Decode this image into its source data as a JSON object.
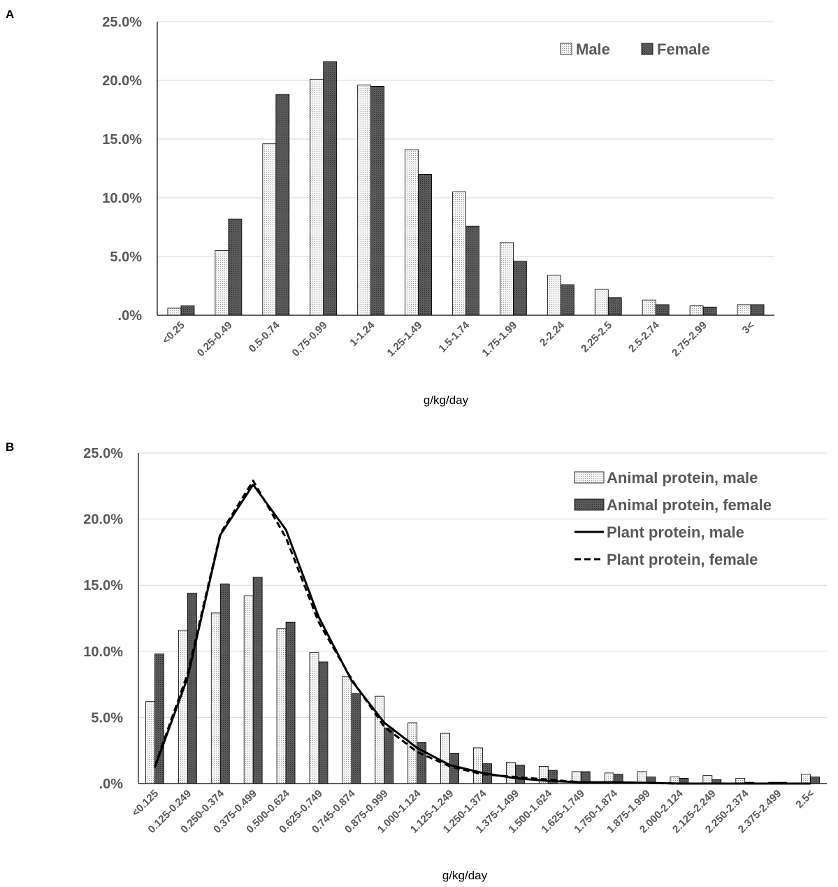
{
  "figure": {
    "colors": {
      "male_fill": "#efefef",
      "female_fill": "#5f5f5f",
      "grid": "#d9d9d9",
      "tick_text": "#595959"
    }
  },
  "chart_data": [
    {
      "panel": "A",
      "type": "bar",
      "xlabel": "g/kg/day",
      "ylabel": "",
      "ylim": [
        0,
        25
      ],
      "yticks": [
        0,
        5,
        10,
        15,
        20,
        25
      ],
      "ytick_labels": [
        ".0%",
        "5.0%",
        "10.0%",
        "15.0%",
        "20.0%",
        "25.0%"
      ],
      "grid": true,
      "legend_position": "top-right",
      "categories": [
        "<0.25",
        "0.25-0.49",
        "0.5-0.74",
        "0.75-0.99",
        "1-1.24",
        "1.25-1.49",
        "1.5-1.74",
        "1.75-1.99",
        "2-2.24",
        "2.25-2.5",
        "2.5-2.74",
        "2.75-2.99",
        "3<"
      ],
      "series": [
        {
          "name": "Male",
          "kind": "bar",
          "fill": "male",
          "values": [
            0.6,
            5.5,
            14.6,
            20.1,
            19.6,
            14.1,
            10.5,
            6.2,
            3.4,
            2.2,
            1.3,
            0.8,
            0.9
          ]
        },
        {
          "name": "Female",
          "kind": "bar",
          "fill": "female",
          "values": [
            0.8,
            8.2,
            18.8,
            21.6,
            19.5,
            12.0,
            7.6,
            4.6,
            2.6,
            1.5,
            0.9,
            0.7,
            0.9
          ]
        }
      ]
    },
    {
      "panel": "B",
      "type": "bar",
      "xlabel": "g/kg/day",
      "ylabel": "",
      "ylim": [
        0,
        25
      ],
      "yticks": [
        0,
        5,
        10,
        15,
        20,
        25
      ],
      "ytick_labels": [
        ".0%",
        "5.0%",
        "10.0%",
        "15.0%",
        "20.0%",
        "25.0%"
      ],
      "grid": true,
      "legend_position": "top-right",
      "categories": [
        "<0.125",
        "0.125-0.249",
        "0.250-0.374",
        "0.375-0.499",
        "0.500-0.624",
        "0.625-0.749",
        "0.745-0.874",
        "0.875-0.999",
        "1.000-1.124",
        "1.125-1.249",
        "1.250-1.374",
        "1.375-1.499",
        "1.500-1.624",
        "1.625-1.749",
        "1.750-1.874",
        "1.875-1.999",
        "2.000-2.124",
        "2.125-2.249",
        "2.250-2.374",
        "2.375-2.499",
        "2.5<"
      ],
      "series": [
        {
          "name": "Animal protein, male",
          "kind": "bar",
          "fill": "male",
          "values": [
            6.2,
            11.6,
            12.9,
            14.2,
            11.7,
            9.9,
            8.1,
            6.6,
            4.6,
            3.8,
            2.7,
            1.6,
            1.3,
            0.9,
            0.8,
            0.9,
            0.5,
            0.6,
            0.4,
            0.1,
            0.7
          ]
        },
        {
          "name": "Animal protein, female",
          "kind": "bar",
          "fill": "female",
          "values": [
            9.8,
            14.4,
            15.1,
            15.6,
            12.2,
            9.2,
            6.8,
            4.2,
            3.1,
            2.3,
            1.5,
            1.4,
            1.0,
            0.9,
            0.7,
            0.5,
            0.4,
            0.3,
            0.1,
            0.1,
            0.5
          ]
        },
        {
          "name": "Plant protein, male",
          "kind": "line",
          "dash": false,
          "values": [
            1.2,
            8.0,
            18.8,
            22.6,
            19.2,
            12.6,
            7.8,
            4.6,
            2.7,
            1.4,
            0.8,
            0.4,
            0.2,
            0.1,
            0.1,
            0.05,
            0.0,
            0.0,
            0.0,
            0.0,
            0.0
          ]
        },
        {
          "name": "Plant protein, female",
          "kind": "line",
          "dash": true,
          "values": [
            1.3,
            8.3,
            18.9,
            22.9,
            18.6,
            12.2,
            7.9,
            4.3,
            2.4,
            1.3,
            0.7,
            0.5,
            0.3,
            0.1,
            0.1,
            0.05,
            0.0,
            0.0,
            0.0,
            0.0,
            0.0
          ]
        }
      ]
    }
  ]
}
